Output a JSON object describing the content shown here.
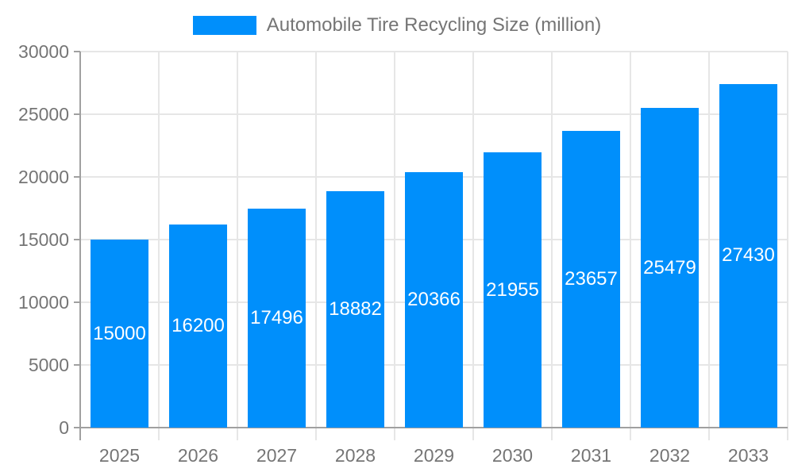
{
  "legend": {
    "label": "Automobile Tire Recycling Size (million)"
  },
  "chart_data": {
    "type": "bar",
    "title": "Automobile Tire Recycling Size (million)",
    "categories": [
      "2025",
      "2026",
      "2027",
      "2028",
      "2029",
      "2030",
      "2031",
      "2032",
      "2033"
    ],
    "values": [
      15000,
      16200,
      17496,
      18882,
      20366,
      21955,
      23657,
      25479,
      27430
    ],
    "xlabel": "",
    "ylabel": "",
    "ylim": [
      0,
      30000
    ],
    "yticks": [
      0,
      5000,
      10000,
      15000,
      20000,
      25000,
      30000
    ],
    "grid": true,
    "legend_position": "top",
    "bar_labels_inside": true,
    "colors": {
      "bar": "#008FFB",
      "bar_label_text": "#FFFFFF",
      "axis_label_text": "#757575",
      "legend_text": "#757575",
      "gridline": "#E6E6E6",
      "axis_line": "#A0A0A0"
    }
  }
}
